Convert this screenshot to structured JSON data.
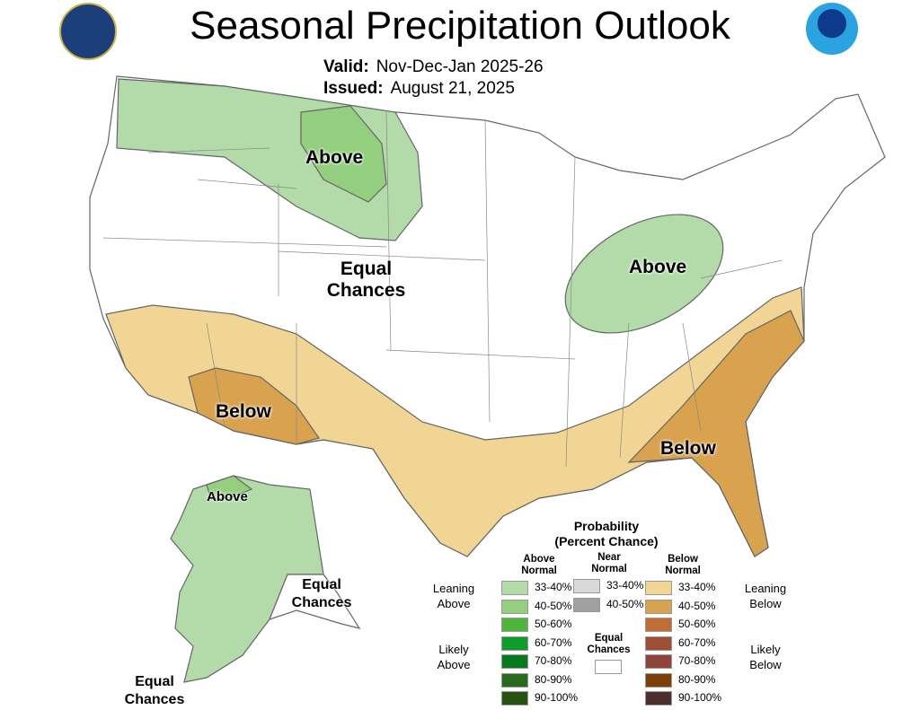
{
  "title": "Seasonal Precipitation Outlook",
  "valid_label": "Valid:",
  "valid": "Nov-Dec-Jan 2025-26",
  "issued_label": "Issued:",
  "issued": "August 21, 2025",
  "map_labels": {
    "above_nw": "Above",
    "above_ohio": "Above",
    "equal": "Equal Chances",
    "below_sw": "Below",
    "below_se": "Below",
    "ak_above": "Above",
    "ak_equal_1": "Equal Chances",
    "ak_equal_2": "Equal Chances"
  },
  "colors": {
    "above_33": "#b3dbaa",
    "above_40": "#94cf7f",
    "below_33": "#f1d594",
    "below_40": "#d9a24f"
  },
  "legend": {
    "title1": "Probability",
    "title2": "(Percent Chance)",
    "col_above": "Above Normal",
    "col_near": "Near Normal",
    "col_below": "Below Normal",
    "leaning_above": "Leaning Above",
    "likely_above": "Likely Above",
    "leaning_below": "Leaning Below",
    "likely_below": "Likely Below",
    "equal": "Equal Chances",
    "above": [
      {
        "r": "33-40%",
        "c": "#b3dbaa"
      },
      {
        "r": "40-50%",
        "c": "#94cf7f"
      },
      {
        "r": "50-60%",
        "c": "#4db53a"
      },
      {
        "r": "60-70%",
        "c": "#0e9c2a"
      },
      {
        "r": "70-80%",
        "c": "#077a1d"
      },
      {
        "r": "80-90%",
        "c": "#2a6a1c"
      },
      {
        "r": "90-100%",
        "c": "#285210"
      }
    ],
    "near": [
      {
        "r": "33-40%",
        "c": "#d9d9d9"
      },
      {
        "r": "40-50%",
        "c": "#a0a0a0"
      }
    ],
    "below": [
      {
        "r": "33-40%",
        "c": "#f1d594"
      },
      {
        "r": "40-50%",
        "c": "#d9a24f"
      },
      {
        "r": "50-60%",
        "c": "#bf6d34"
      },
      {
        "r": "60-70%",
        "c": "#9c4f32"
      },
      {
        "r": "70-80%",
        "c": "#8f433a"
      },
      {
        "r": "80-90%",
        "c": "#7d3f0a"
      },
      {
        "r": "90-100%",
        "c": "#4d2e2e"
      }
    ]
  }
}
